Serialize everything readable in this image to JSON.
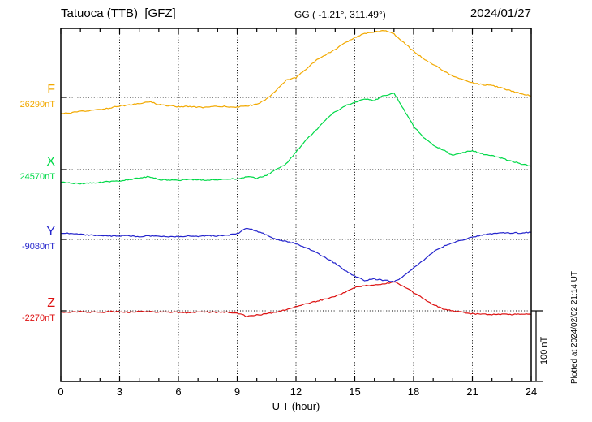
{
  "header": {
    "title": "Tatuoca (TTB)  [GFZ]",
    "coords": "GG ( -1.21°, 311.49°)",
    "date": "2024/01/27"
  },
  "footer": {
    "x_axis_label": "U T (hour)",
    "plotted_at": "Plotted at 2024/02/02 21:14 UT"
  },
  "scale_bar": {
    "label": "100 nT",
    "nT": 100
  },
  "chart_data": {
    "type": "line",
    "title": "Tatuoca (TTB) [GFZ] magnetogram 2024/01/27",
    "xlabel": "U T (hour)",
    "xlim": [
      0,
      24
    ],
    "x_ticks": [
      0,
      3,
      6,
      9,
      12,
      15,
      18,
      21,
      24
    ],
    "x_step_hours": 0.5,
    "grid": "dotted vertical lines at 3-hour ticks; dotted horizontal line at each series baseline",
    "scale_nT_per_division": 100,
    "legend_position": "left baseline labels",
    "series": [
      {
        "name": "F",
        "baseline_label": "26290nT",
        "baseline_nT": 26290,
        "color": "#f2a900",
        "values_rel_nT": [
          -23,
          -22,
          -20,
          -19,
          -17,
          -15,
          -12,
          -11,
          -9,
          -6,
          -10,
          -12,
          -13,
          -13,
          -14,
          -14,
          -13,
          -13,
          -14,
          -12,
          -10,
          -2,
          10,
          24,
          28,
          40,
          52,
          60,
          68,
          77,
          85,
          90,
          93,
          95,
          90,
          78,
          65,
          55,
          47,
          38,
          30,
          25,
          21,
          18,
          17,
          13,
          9,
          5,
          2
        ]
      },
      {
        "name": "X",
        "baseline_label": "24570nT",
        "baseline_nT": 24570,
        "color": "#00d948",
        "values_rel_nT": [
          -18,
          -19,
          -20,
          -19,
          -18,
          -17,
          -16,
          -14,
          -12,
          -10,
          -14,
          -15,
          -15,
          -14,
          -14,
          -15,
          -14,
          -13,
          -13,
          -10,
          -12,
          -8,
          0,
          8,
          25,
          42,
          55,
          70,
          82,
          90,
          95,
          100,
          98,
          105,
          108,
          85,
          62,
          45,
          35,
          28,
          20,
          24,
          27,
          22,
          20,
          16,
          12,
          8,
          5
        ]
      },
      {
        "name": "Y",
        "baseline_label": "-9080nT",
        "baseline_nT": -9080,
        "color": "#2424cc",
        "values_rel_nT": [
          9,
          8,
          7,
          6,
          6,
          5,
          5,
          5,
          4,
          5,
          4,
          4,
          4,
          5,
          4,
          5,
          5,
          6,
          8,
          16,
          12,
          6,
          0,
          -3,
          -6,
          -12,
          -18,
          -26,
          -34,
          -44,
          -52,
          -58,
          -56,
          -58,
          -60,
          -52,
          -40,
          -30,
          -18,
          -10,
          -5,
          -1,
          3,
          6,
          8,
          9,
          9,
          9,
          10
        ]
      },
      {
        "name": "Z",
        "baseline_label": "-2270nT",
        "baseline_nT": -2270,
        "color": "#dd1111",
        "values_rel_nT": [
          -2,
          -2,
          -1,
          -2,
          -2,
          -1,
          -1,
          -2,
          -1,
          -1,
          -2,
          -2,
          -2,
          -3,
          -2,
          -2,
          -2,
          -2,
          -3,
          -8,
          -6,
          -4,
          -2,
          2,
          6,
          10,
          13,
          17,
          21,
          26,
          33,
          36,
          36,
          38,
          41,
          35,
          26,
          17,
          9,
          3,
          0,
          -2,
          -4,
          -5,
          -5,
          -5,
          -5,
          -5,
          -5
        ]
      }
    ]
  }
}
